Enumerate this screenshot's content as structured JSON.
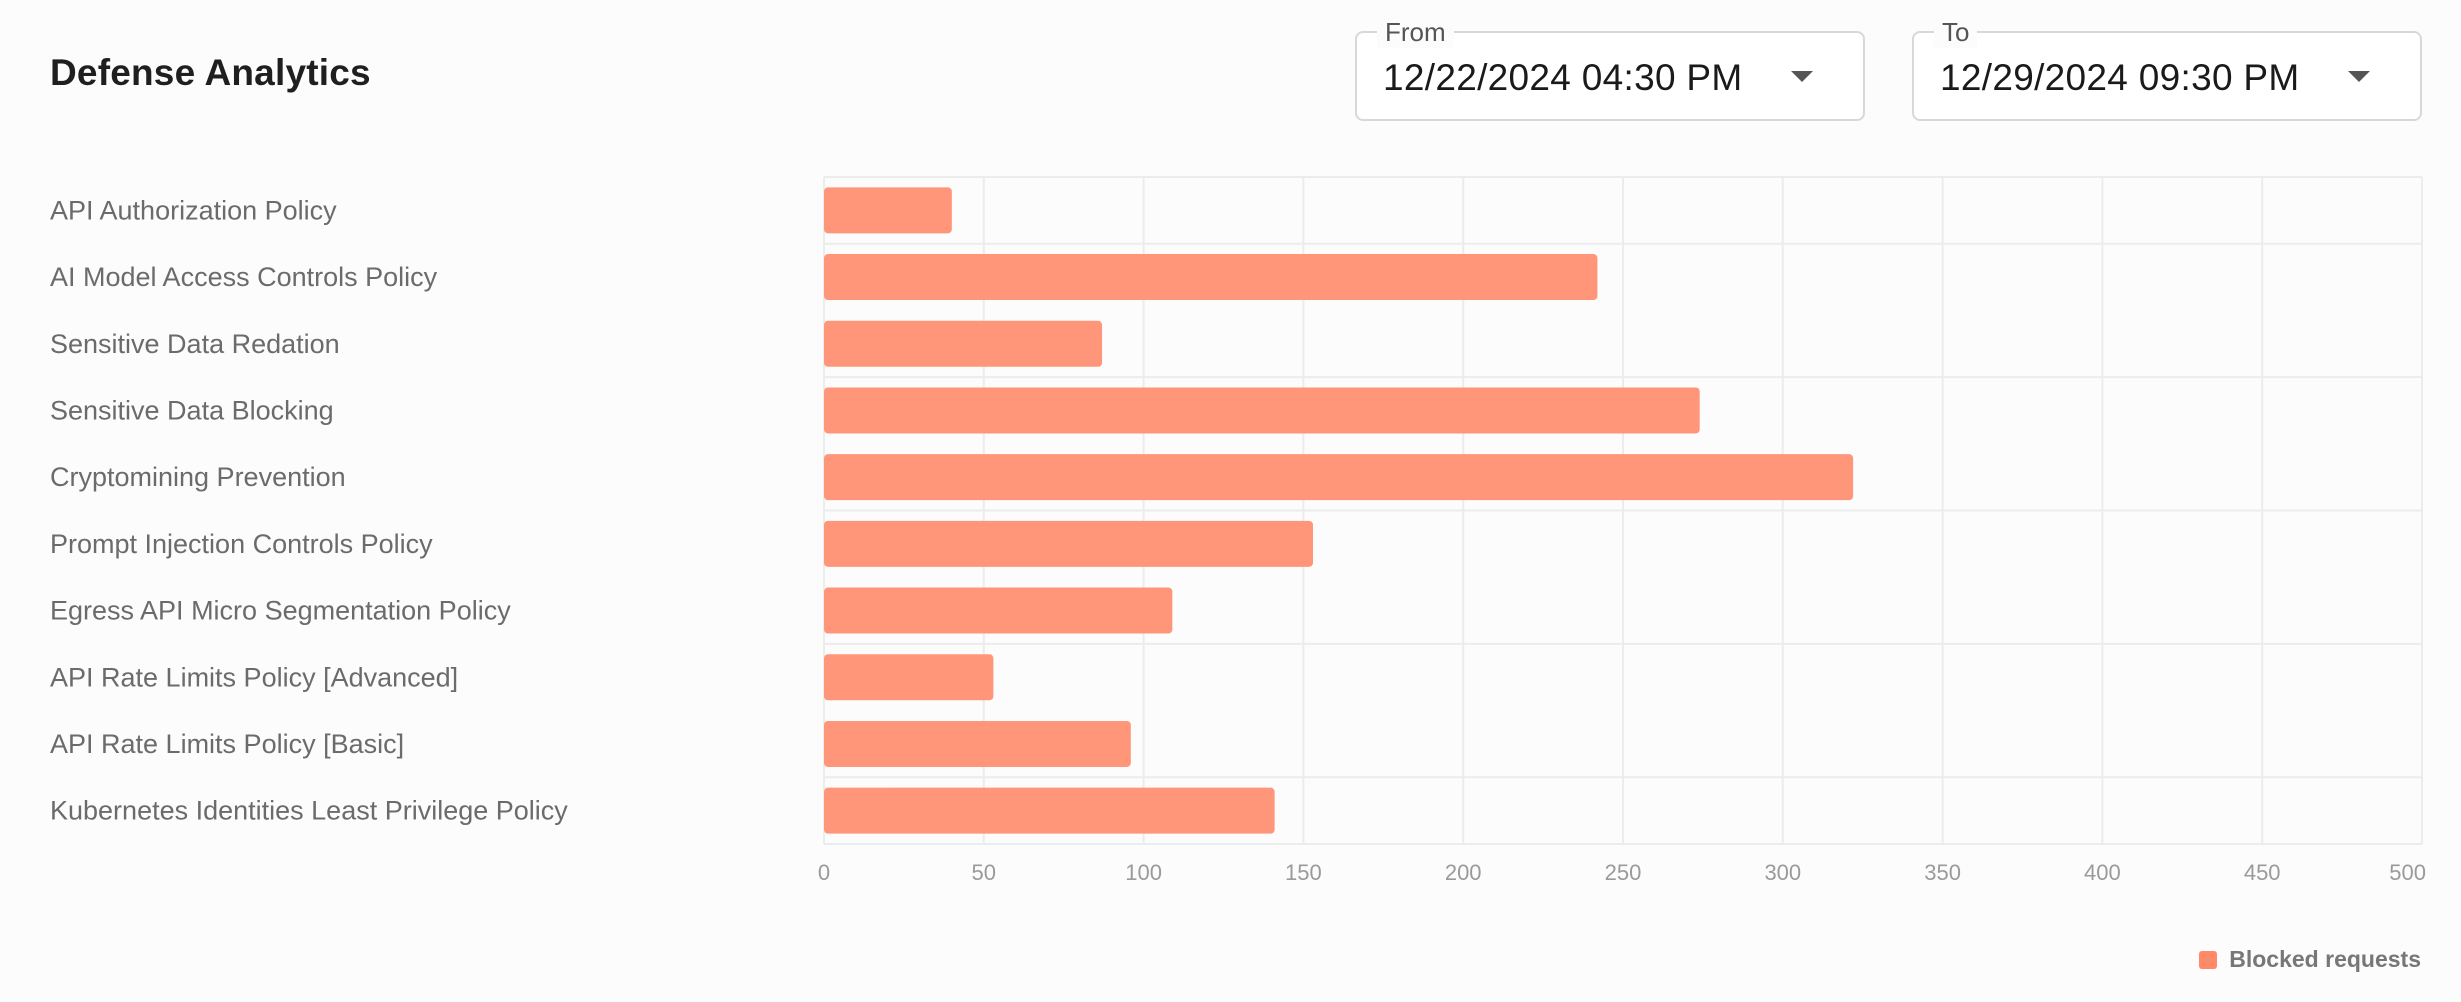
{
  "header": {
    "title": "Defense Analytics"
  },
  "date_range": {
    "from_label": "From",
    "from_value": "12/22/2024 04:30 PM",
    "to_label": "To",
    "to_value": "12/29/2024 09:30 PM"
  },
  "legend": {
    "label": "Blocked requests",
    "color": "#ff8a65"
  },
  "colors": {
    "bar": "#ff967a",
    "grid": "#ececec"
  },
  "chart_data": {
    "type": "bar",
    "orientation": "horizontal",
    "categories": [
      "API Authorization Policy",
      "AI Model Access Controls Policy",
      "Sensitive Data Redation",
      "Sensitive Data Blocking",
      "Cryptomining Prevention",
      "Prompt Injection Controls Policy",
      "Egress API Micro Segmentation Policy",
      "API Rate Limits Policy [Advanced]",
      "API Rate Limits Policy [Basic]",
      "Kubernetes Identities Least Privilege Policy"
    ],
    "series": [
      {
        "name": "Blocked requests",
        "values": [
          40,
          242,
          87,
          274,
          322,
          153,
          109,
          53,
          96,
          141
        ]
      }
    ],
    "xlim": [
      0,
      500
    ],
    "xticks": [
      0,
      50,
      100,
      150,
      200,
      250,
      300,
      350,
      400,
      450,
      500
    ],
    "grid": true,
    "legend_position": "bottom-right"
  }
}
